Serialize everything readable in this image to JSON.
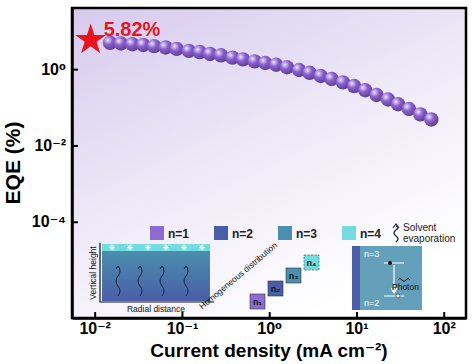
{
  "chart_data": {
    "type": "scatter",
    "x_label": "Current density (mA cm⁻²)",
    "y_label": "EQE (%)",
    "log": true,
    "grid": false,
    "color": "#8a5fd0",
    "marker": "sphere",
    "xlim": [
      0.0055,
      180
    ],
    "ylim": [
      3e-07,
      40
    ],
    "xticks": [
      {
        "value": 0.01,
        "label": "10⁻²"
      },
      {
        "value": 0.1,
        "label": "10⁻¹"
      },
      {
        "value": 1,
        "label": "10⁰"
      },
      {
        "value": 10,
        "label": "10¹"
      },
      {
        "value": 100,
        "label": "10²"
      }
    ],
    "yticks": [
      {
        "value": 0.0001,
        "label": "10⁻⁴"
      },
      {
        "value": 0.01,
        "label": "10⁻²"
      },
      {
        "value": 1,
        "label": "10⁰"
      }
    ],
    "x": [
      0.015,
      0.02,
      0.027,
      0.036,
      0.048,
      0.065,
      0.087,
      0.12,
      0.16,
      0.21,
      0.28,
      0.38,
      0.5,
      0.68,
      0.9,
      1.2,
      1.6,
      2.2,
      2.9,
      3.9,
      5.2,
      7,
      9.4,
      12.6,
      17,
      23,
      30,
      40,
      54,
      72
    ],
    "values": [
      4.9,
      4.7,
      4.5,
      4.3,
      4,
      3.7,
      3.4,
      3,
      2.8,
      2.5,
      2.3,
      2,
      1.8,
      1.6,
      1.45,
      1.3,
      1.12,
      0.95,
      0.8,
      0.66,
      0.55,
      0.45,
      0.36,
      0.28,
      0.21,
      0.16,
      0.12,
      0.09,
      0.065,
      0.048
    ],
    "annotations": [
      {
        "text": "5.82%",
        "x": 0.009,
        "y": 5.82,
        "color": "#e8141c",
        "marker": "star"
      },
      {
        "text": "n=1",
        "color": "#8e6bd0"
      },
      {
        "text": "n=2",
        "color": "#4a5ea8"
      },
      {
        "text": "n=3",
        "color": "#4a8fae"
      },
      {
        "text": "n=4",
        "color": "#74dce0"
      },
      {
        "text": "Solvent evaporation"
      },
      {
        "text": "Vertical height"
      },
      {
        "text": "Radial distance"
      },
      {
        "text": "Homogeneous distribution"
      },
      {
        "text": "n₁"
      },
      {
        "text": "n₂"
      },
      {
        "text": "n₃"
      },
      {
        "text": "n₄"
      },
      {
        "text": "n=3"
      },
      {
        "text": "n=2"
      },
      {
        "text": "Photon"
      }
    ]
  }
}
